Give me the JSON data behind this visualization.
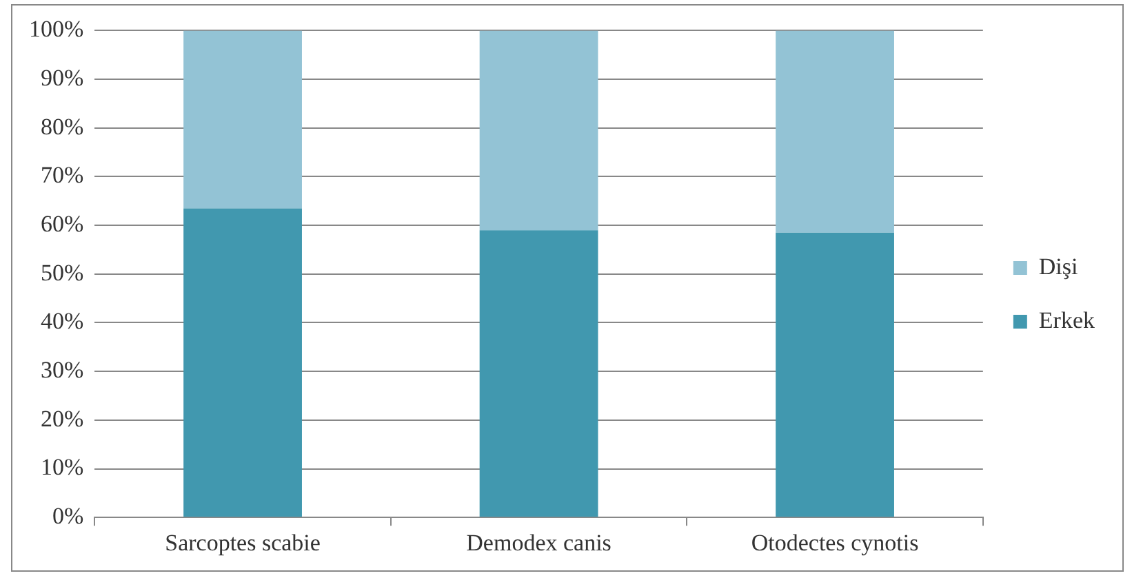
{
  "chart_data": {
    "type": "bar",
    "stacked": true,
    "categories": [
      "Sarcoptes scabie",
      "Demodex canis",
      "Otodectes cynotis"
    ],
    "series": [
      {
        "name": "Erkek",
        "color": "#4198af",
        "values": [
          63.5,
          59,
          58.5
        ]
      },
      {
        "name": "Dişi",
        "color": "#93c3d5",
        "values": [
          36.5,
          41,
          41.5
        ]
      }
    ],
    "ylim": [
      0,
      100
    ],
    "yticks": [
      {
        "value": 0,
        "label": "0%"
      },
      {
        "value": 10,
        "label": "10%"
      },
      {
        "value": 20,
        "label": "20%"
      },
      {
        "value": 30,
        "label": "30%"
      },
      {
        "value": 40,
        "label": "40%"
      },
      {
        "value": 50,
        "label": "50%"
      },
      {
        "value": 60,
        "label": "60%"
      },
      {
        "value": 70,
        "label": "70%"
      },
      {
        "value": 80,
        "label": "80%"
      },
      {
        "value": 90,
        "label": "90%"
      },
      {
        "value": 100,
        "label": "100%"
      }
    ],
    "grid": "y",
    "legend": "right"
  }
}
